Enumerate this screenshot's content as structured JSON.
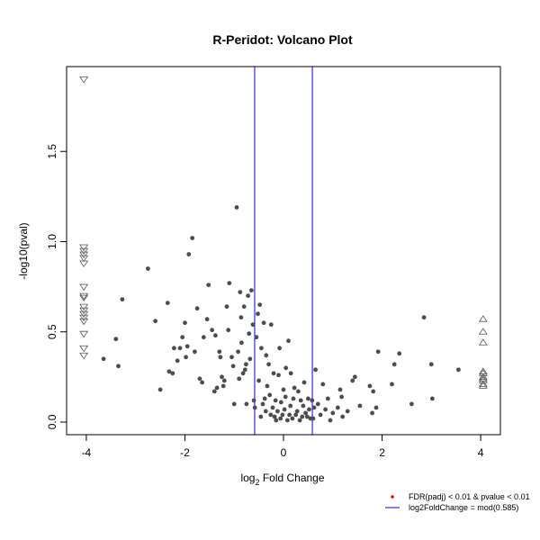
{
  "chart_data": {
    "type": "scatter",
    "title": "R-Peridot: Volcano Plot",
    "xlabel_base": "log",
    "xlabel_sub": "2",
    "xlabel_rest": " Fold Change",
    "ylabel": "-log10(pval)",
    "xlim": [
      -4.4,
      4.4
    ],
    "ylim": [
      -0.07,
      1.97
    ],
    "xticks": [
      -4,
      -2,
      0,
      2,
      4
    ],
    "yticks": [
      0.0,
      0.5,
      1.0,
      1.5
    ],
    "xtick_labels": [
      "-4",
      "-2",
      "0",
      "2",
      "4"
    ],
    "ytick_labels": [
      "0.0",
      "0.5",
      "1.0",
      "1.5"
    ],
    "vlines": [
      -0.585,
      0.585
    ],
    "vline_color": "#0000ff",
    "point_color": "#4d4d4d",
    "marker_edge_color": "#555555",
    "legend_position": "bottom-right",
    "legend": [
      {
        "label": "FDR(padj) < 0.01 & pvalue < 0.01",
        "color": "#ff0000",
        "symbol": "point"
      },
      {
        "label": "log2FoldChange = mod(0.585)",
        "color": "#0000ff",
        "symbol": "line"
      }
    ],
    "down_clipped": {
      "x": -4.05,
      "y": [
        1.9,
        0.97,
        0.95,
        0.93,
        0.91,
        0.88,
        0.75,
        0.7,
        0.69,
        0.64,
        0.62,
        0.6,
        0.58,
        0.56,
        0.49,
        0.41,
        0.37
      ]
    },
    "up_clipped": {
      "x": 4.05,
      "y": [
        0.57,
        0.5,
        0.44,
        0.28,
        0.27,
        0.25,
        0.24,
        0.23,
        0.21,
        0.2
      ]
    },
    "points": [
      [
        -3.65,
        0.35
      ],
      [
        -3.4,
        0.46
      ],
      [
        -3.35,
        0.31
      ],
      [
        -3.27,
        0.68
      ],
      [
        -2.75,
        0.85
      ],
      [
        -2.6,
        0.56
      ],
      [
        -2.5,
        0.18
      ],
      [
        -2.35,
        0.66
      ],
      [
        -2.32,
        0.28
      ],
      [
        -2.25,
        0.27
      ],
      [
        -2.22,
        0.41
      ],
      [
        -2.15,
        0.34
      ],
      [
        -2.1,
        0.41
      ],
      [
        -2.05,
        0.47
      ],
      [
        -2.0,
        0.55
      ],
      [
        -1.98,
        0.36
      ],
      [
        -1.95,
        0.42
      ],
      [
        -1.92,
        0.93
      ],
      [
        -1.85,
        1.02
      ],
      [
        -1.8,
        0.39
      ],
      [
        -1.75,
        0.63
      ],
      [
        -1.7,
        0.24
      ],
      [
        -1.65,
        0.22
      ],
      [
        -1.62,
        0.47
      ],
      [
        -1.55,
        0.57
      ],
      [
        -1.52,
        0.76
      ],
      [
        -1.45,
        0.51
      ],
      [
        -1.4,
        0.17
      ],
      [
        -1.38,
        0.48
      ],
      [
        -1.35,
        0.19
      ],
      [
        -1.3,
        0.39
      ],
      [
        -1.28,
        0.36
      ],
      [
        -1.25,
        0.25
      ],
      [
        -1.22,
        0.2
      ],
      [
        -1.2,
        0.23
      ],
      [
        -1.15,
        0.64
      ],
      [
        -1.12,
        0.51
      ],
      [
        -1.1,
        0.77
      ],
      [
        -1.05,
        0.36
      ],
      [
        -1.02,
        0.31
      ],
      [
        -1.0,
        0.1
      ],
      [
        -0.95,
        1.19
      ],
      [
        -0.92,
        0.39
      ],
      [
        -0.9,
        0.24
      ],
      [
        -0.88,
        0.72
      ],
      [
        -0.86,
        0.58
      ],
      [
        -0.85,
        0.44
      ],
      [
        -0.82,
        0.27
      ],
      [
        -0.8,
        0.64
      ],
      [
        -0.78,
        0.29
      ],
      [
        -0.76,
        0.32
      ],
      [
        -0.75,
        0.1
      ],
      [
        -0.72,
        0.7
      ],
      [
        -0.7,
        0.49
      ],
      [
        -0.68,
        0.35
      ],
      [
        -0.65,
        0.73
      ],
      [
        -0.62,
        0.54
      ],
      [
        -0.6,
        0.12
      ],
      [
        -0.58,
        0.08
      ],
      [
        -0.55,
        0.47
      ],
      [
        -0.52,
        0.6
      ],
      [
        -0.5,
        0.23
      ],
      [
        -0.48,
        0.65
      ],
      [
        -0.46,
        0.03
      ],
      [
        -0.45,
        0.41
      ],
      [
        -0.42,
        0.1
      ],
      [
        -0.4,
        0.55
      ],
      [
        -0.38,
        0.13
      ],
      [
        -0.36,
        0.06
      ],
      [
        -0.35,
        0.37
      ],
      [
        -0.33,
        0.2
      ],
      [
        -0.3,
        0.32
      ],
      [
        -0.28,
        0.15
      ],
      [
        -0.26,
        0.04
      ],
      [
        -0.25,
        0.54
      ],
      [
        -0.22,
        0.08
      ],
      [
        -0.2,
        0.27
      ],
      [
        -0.18,
        0.03
      ],
      [
        -0.16,
        0.12
      ],
      [
        -0.15,
        0.01
      ],
      [
        -0.12,
        0.06
      ],
      [
        -0.1,
        0.26
      ],
      [
        -0.08,
        0.41
      ],
      [
        -0.06,
        0.02
      ],
      [
        -0.05,
        0.11
      ],
      [
        -0.02,
        0.04
      ],
      [
        0.0,
        0.18
      ],
      [
        0.02,
        0.07
      ],
      [
        0.04,
        0.14
      ],
      [
        0.05,
        0.3
      ],
      [
        0.08,
        0.01
      ],
      [
        0.1,
        0.45
      ],
      [
        0.12,
        0.04
      ],
      [
        0.14,
        0.09
      ],
      [
        0.15,
        0.27
      ],
      [
        0.18,
        0.02
      ],
      [
        0.2,
        0.13
      ],
      [
        0.22,
        0.19
      ],
      [
        0.25,
        0.04
      ],
      [
        0.28,
        0.06
      ],
      [
        0.3,
        0.17
      ],
      [
        0.33,
        0.01
      ],
      [
        0.35,
        0.12
      ],
      [
        0.38,
        0.03
      ],
      [
        0.4,
        0.09
      ],
      [
        0.42,
        0.22
      ],
      [
        0.45,
        0.05
      ],
      [
        0.48,
        0.03
      ],
      [
        0.5,
        0.13
      ],
      [
        0.52,
        0.07
      ],
      [
        0.55,
        0.02
      ],
      [
        0.58,
        0.12
      ],
      [
        0.6,
        0.02
      ],
      [
        0.62,
        0.08
      ],
      [
        0.65,
        0.29
      ],
      [
        0.7,
        0.1
      ],
      [
        0.75,
        0.04
      ],
      [
        0.8,
        0.21
      ],
      [
        0.85,
        0.07
      ],
      [
        0.9,
        0.13
      ],
      [
        0.95,
        0.01
      ],
      [
        1.0,
        0.05
      ],
      [
        1.1,
        0.08
      ],
      [
        1.15,
        0.18
      ],
      [
        1.18,
        0.14
      ],
      [
        1.2,
        0.03
      ],
      [
        1.3,
        0.06
      ],
      [
        1.4,
        0.23
      ],
      [
        1.45,
        0.25
      ],
      [
        1.55,
        0.09
      ],
      [
        1.75,
        0.2
      ],
      [
        1.8,
        0.05
      ],
      [
        1.82,
        0.17
      ],
      [
        1.88,
        0.08
      ],
      [
        1.92,
        0.39
      ],
      [
        2.2,
        0.21
      ],
      [
        2.25,
        0.32
      ],
      [
        2.35,
        0.38
      ],
      [
        2.6,
        0.1
      ],
      [
        2.85,
        0.58
      ],
      [
        3.0,
        0.32
      ],
      [
        3.02,
        0.13
      ],
      [
        3.55,
        0.29
      ]
    ]
  }
}
